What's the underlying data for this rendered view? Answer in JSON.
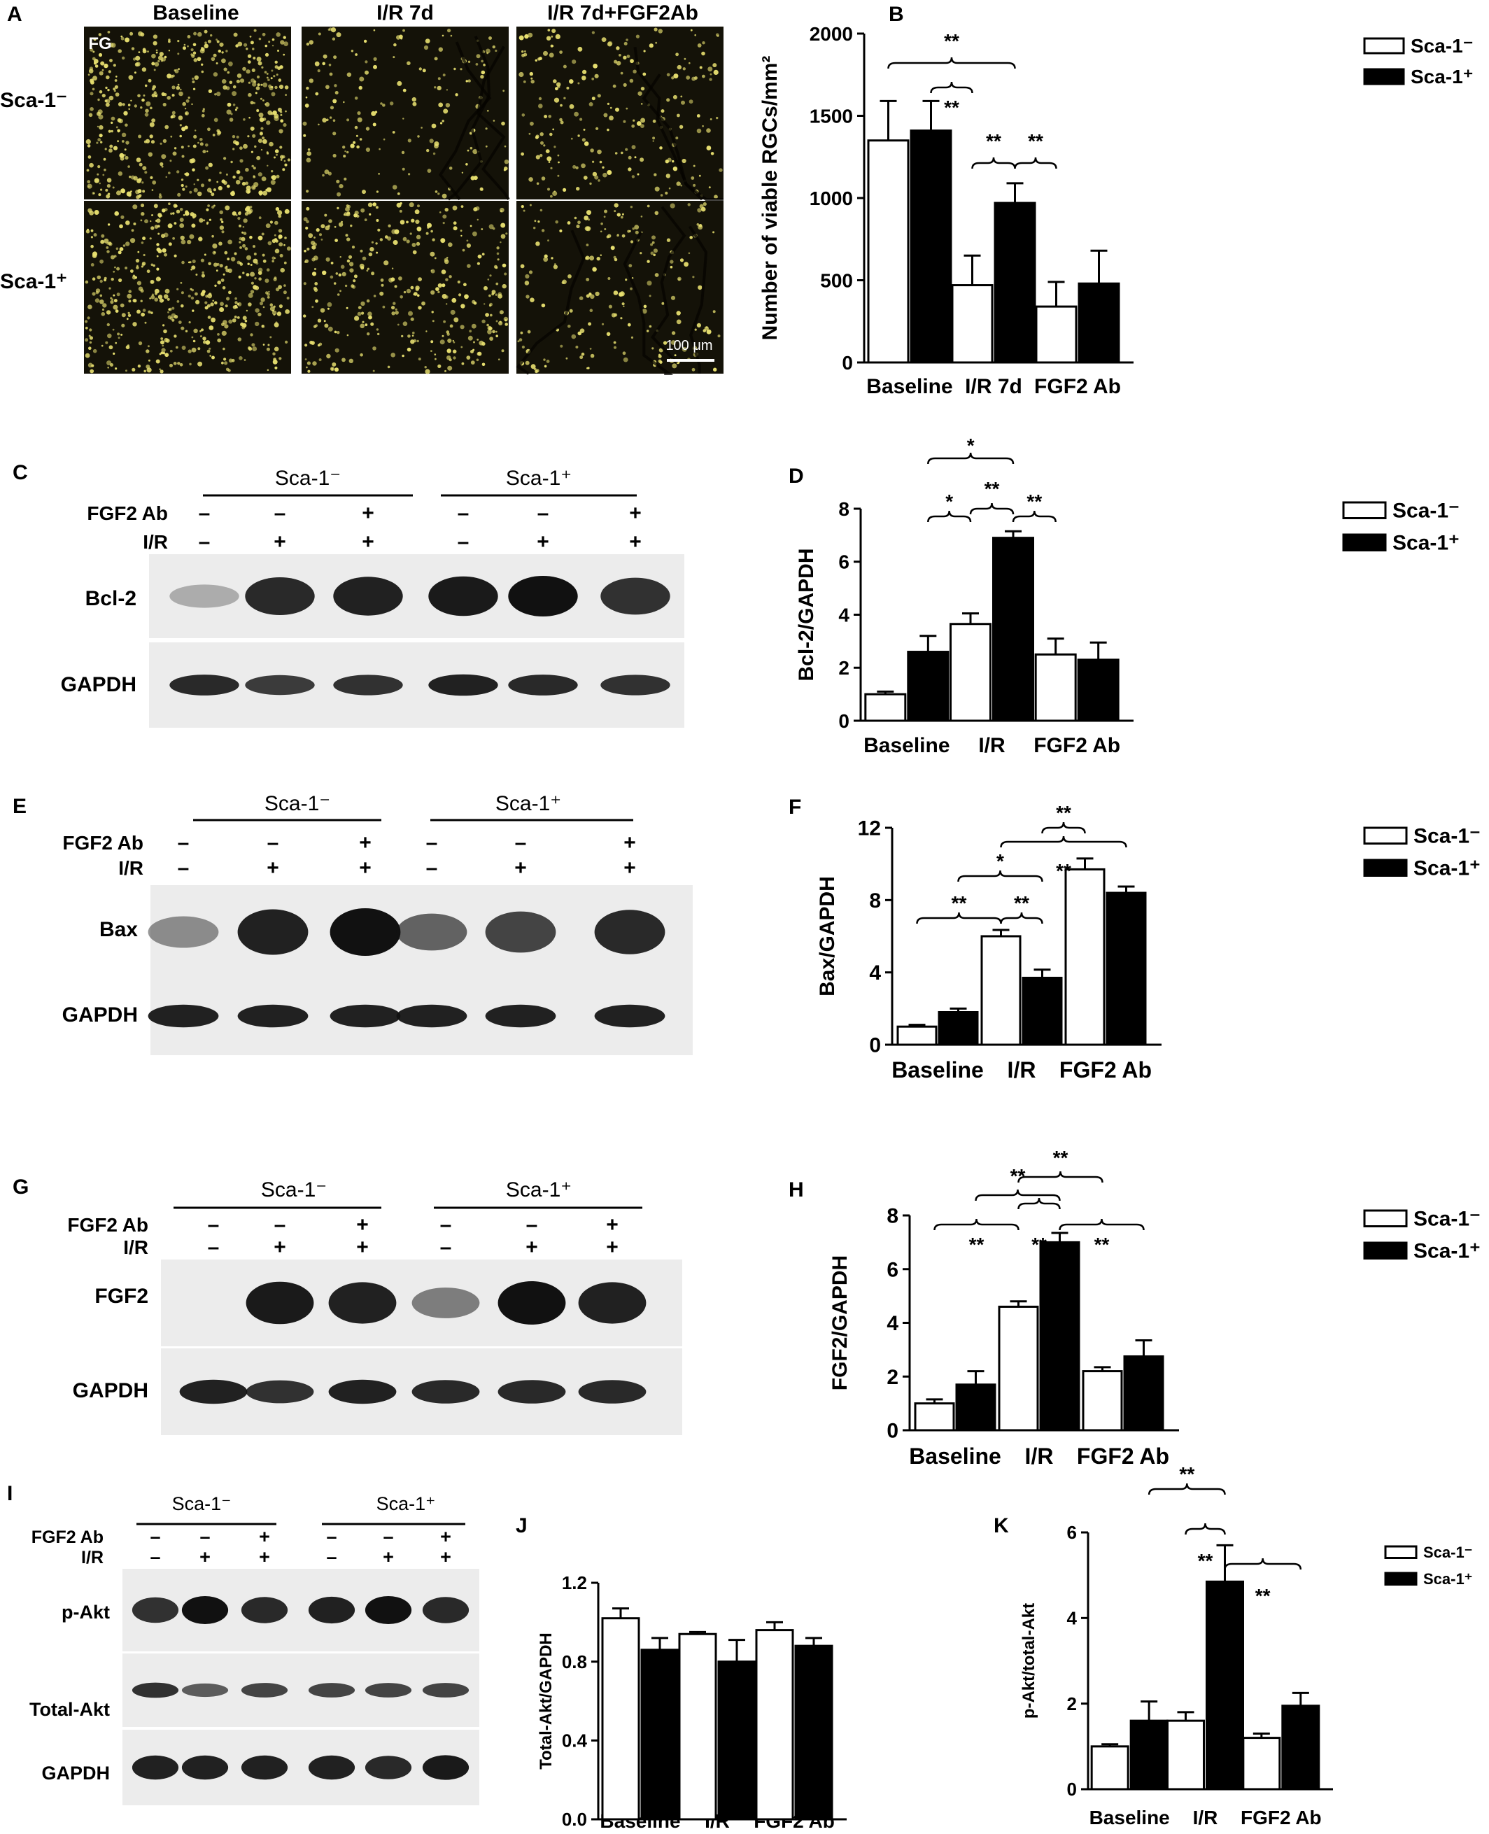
{
  "colors": {
    "micro_bg": "#141208",
    "dot": "#e8e070",
    "bar_neg": "#ffffff",
    "bar_pos": "#000000",
    "blot_bg": "#ececec",
    "band": "#111111"
  },
  "panelA": {
    "letter": "A",
    "col_headers": [
      "Baseline",
      "I/R 7d",
      "I/R 7d+FGF2Ab"
    ],
    "row_headers": [
      "Sca-1⁻",
      "Sca-1⁺"
    ],
    "stain_label": "FG",
    "scale_bar_label": "100 μm",
    "tiles": [
      {
        "name": "micrograph-sca1neg-baseline",
        "density": 1.0,
        "vessels": 0
      },
      {
        "name": "micrograph-sca1neg-ir7d",
        "density": 0.35,
        "vessels": 3
      },
      {
        "name": "micrograph-sca1neg-ir7d-fgf2ab",
        "density": 0.45,
        "vessels": 2
      },
      {
        "name": "micrograph-sca1pos-baseline",
        "density": 1.0,
        "vessels": 0
      },
      {
        "name": "micrograph-sca1pos-ir7d",
        "density": 0.7,
        "vessels": 0
      },
      {
        "name": "micrograph-sca1pos-ir7d-fgf2ab",
        "density": 0.4,
        "vessels": 4
      }
    ]
  },
  "blots": [
    {
      "id": "C",
      "letter": "C",
      "groups": [
        "Sca-1⁻",
        "Sca-1⁺"
      ],
      "treatments": [
        {
          "label": "FGF2 Ab",
          "signs": [
            "–",
            "–",
            "+",
            "–",
            "–",
            "+"
          ]
        },
        {
          "label": "I/R",
          "signs": [
            "–",
            "+",
            "+",
            "–",
            "+",
            "+"
          ]
        }
      ],
      "rows": [
        {
          "label": "Bcl-2",
          "intensities": [
            0.05,
            0.85,
            0.9,
            0.95,
            1.0,
            0.8
          ]
        },
        {
          "label": "GAPDH",
          "intensities": [
            0.85,
            0.75,
            0.8,
            0.9,
            0.85,
            0.8
          ]
        }
      ]
    },
    {
      "id": "E",
      "letter": "E",
      "groups": [
        "Sca-1⁻",
        "Sca-1⁺"
      ],
      "treatments": [
        {
          "label": "FGF2 Ab",
          "signs": [
            "–",
            "–",
            "+",
            "–",
            "–",
            "+"
          ]
        },
        {
          "label": "I/R",
          "signs": [
            "–",
            "+",
            "+",
            "–",
            "+",
            "+"
          ]
        }
      ],
      "rows": [
        {
          "label": "Bax",
          "intensities": [
            0.25,
            0.9,
            1.0,
            0.5,
            0.7,
            0.85
          ]
        },
        {
          "label": "GAPDH",
          "intensities": [
            0.9,
            0.9,
            0.9,
            0.9,
            0.9,
            0.9
          ]
        }
      ]
    },
    {
      "id": "G",
      "letter": "G",
      "groups": [
        "Sca-1⁻",
        "Sca-1⁺"
      ],
      "treatments": [
        {
          "label": "FGF2 Ab",
          "signs": [
            "–",
            "–",
            "+",
            "–",
            "–",
            "+"
          ]
        },
        {
          "label": "I/R",
          "signs": [
            "–",
            "+",
            "+",
            "–",
            "+",
            "+"
          ]
        }
      ],
      "rows": [
        {
          "label": "FGF2",
          "intensities": [
            0.0,
            0.95,
            0.9,
            0.35,
            1.0,
            0.9
          ]
        },
        {
          "label": "GAPDH",
          "intensities": [
            0.9,
            0.8,
            0.9,
            0.85,
            0.85,
            0.85
          ]
        }
      ]
    },
    {
      "id": "I",
      "letter": "I",
      "groups": [
        "Sca-1⁻",
        "Sca-1⁺"
      ],
      "treatments": [
        {
          "label": "FGF2 Ab",
          "signs": [
            "–",
            "–",
            "+",
            "–",
            "–",
            "+"
          ]
        },
        {
          "label": "I/R",
          "signs": [
            "–",
            "+",
            "+",
            "–",
            "+",
            "+"
          ]
        }
      ],
      "rows": [
        {
          "label": "p-Akt",
          "intensities": [
            0.8,
            1.0,
            0.85,
            0.9,
            1.0,
            0.85
          ]
        },
        {
          "label": "Total-Akt",
          "intensities": [
            0.8,
            0.55,
            0.7,
            0.7,
            0.7,
            0.7
          ]
        },
        {
          "label": "GAPDH",
          "intensities": [
            0.9,
            0.9,
            0.9,
            0.9,
            0.85,
            0.95
          ]
        }
      ]
    }
  ],
  "chart_data": [
    {
      "id": "B",
      "letter": "B",
      "type": "bar",
      "categories": [
        "Baseline",
        "I/R 7d",
        "FGF2 Ab"
      ],
      "ylabel": "Number of viable RGCs/mm²",
      "ylim": [
        0,
        2000
      ],
      "yticks": [
        0,
        500,
        1000,
        1500,
        2000
      ],
      "series": [
        {
          "name": "Sca-1⁻",
          "values": [
            1350,
            470,
            340
          ],
          "errors": [
            240,
            180,
            150
          ]
        },
        {
          "name": "Sca-1⁺",
          "values": [
            1410,
            970,
            480
          ],
          "errors": [
            180,
            120,
            200
          ]
        }
      ],
      "legend": {
        "position": "top-right"
      },
      "sig": [
        {
          "from": [
            0,
            0
          ],
          "to": [
            1,
            1
          ],
          "text": "**"
        },
        {
          "from": [
            0,
            1
          ],
          "to": [
            1,
            0
          ],
          "text": "**"
        },
        {
          "from": [
            1,
            0
          ],
          "to": [
            1,
            1
          ],
          "text": "**"
        },
        {
          "from": [
            1,
            1
          ],
          "to": [
            2,
            0
          ],
          "text": "**"
        }
      ]
    },
    {
      "id": "D",
      "letter": "D",
      "type": "bar",
      "categories": [
        "Baseline",
        "I/R",
        "FGF2 Ab"
      ],
      "ylabel": "Bcl-2/GAPDH",
      "ylim": [
        0,
        8
      ],
      "yticks": [
        0,
        2,
        4,
        6,
        8
      ],
      "series": [
        {
          "name": "Sca-1⁻",
          "values": [
            1.0,
            3.65,
            2.5
          ],
          "errors": [
            0.1,
            0.4,
            0.6
          ]
        },
        {
          "name": "Sca-1⁺",
          "values": [
            2.6,
            6.9,
            2.3
          ],
          "errors": [
            0.6,
            0.25,
            0.65
          ]
        }
      ],
      "legend": {
        "position": "top-right"
      },
      "sig": [
        {
          "from": [
            0,
            1
          ],
          "to": [
            1,
            1
          ],
          "text": "*"
        },
        {
          "from": [
            0,
            1
          ],
          "to": [
            1,
            0
          ],
          "text": "*"
        },
        {
          "from": [
            1,
            0
          ],
          "to": [
            1,
            1
          ],
          "text": "**"
        },
        {
          "from": [
            1,
            1
          ],
          "to": [
            2,
            0
          ],
          "text": "**"
        }
      ]
    },
    {
      "id": "F",
      "letter": "F",
      "type": "bar",
      "categories": [
        "Baseline",
        "I/R",
        "FGF2 Ab"
      ],
      "ylabel": "Bax/GAPDH",
      "ylim": [
        0,
        12
      ],
      "yticks": [
        0,
        4,
        8,
        12
      ],
      "series": [
        {
          "name": "Sca-1⁻",
          "values": [
            1.0,
            6.0,
            9.7
          ],
          "errors": [
            0.1,
            0.35,
            0.6
          ]
        },
        {
          "name": "Sca-1⁺",
          "values": [
            1.8,
            3.7,
            8.4
          ],
          "errors": [
            0.2,
            0.45,
            0.35
          ]
        }
      ],
      "legend": {
        "position": "top-right"
      },
      "sig": [
        {
          "from": [
            0,
            0
          ],
          "to": [
            1,
            0
          ],
          "text": "**"
        },
        {
          "from": [
            0,
            1
          ],
          "to": [
            1,
            1
          ],
          "text": "*"
        },
        {
          "from": [
            1,
            0
          ],
          "to": [
            1,
            1
          ],
          "text": "**"
        },
        {
          "from": [
            1,
            1
          ],
          "to": [
            2,
            0
          ],
          "text": "**"
        },
        {
          "from": [
            1,
            0
          ],
          "to": [
            2,
            1
          ],
          "text": "**"
        }
      ]
    },
    {
      "id": "H",
      "letter": "H",
      "type": "bar",
      "categories": [
        "Baseline",
        "I/R",
        "FGF2 Ab"
      ],
      "ylabel": "FGF2/GAPDH",
      "ylim": [
        0,
        8
      ],
      "yticks": [
        0,
        2,
        4,
        6,
        8
      ],
      "series": [
        {
          "name": "Sca-1⁻",
          "values": [
            1.0,
            4.6,
            2.2
          ],
          "errors": [
            0.15,
            0.2,
            0.15
          ]
        },
        {
          "name": "Sca-1⁺",
          "values": [
            1.7,
            7.0,
            2.75
          ],
          "errors": [
            0.5,
            0.35,
            0.6
          ]
        }
      ],
      "legend": {
        "position": "top-right"
      },
      "sig": [
        {
          "from": [
            0,
            1
          ],
          "to": [
            1,
            1
          ],
          "text": "**"
        },
        {
          "from": [
            1,
            0
          ],
          "to": [
            2,
            0
          ],
          "text": "**"
        },
        {
          "from": [
            0,
            0
          ],
          "to": [
            1,
            0
          ],
          "text": "**"
        },
        {
          "from": [
            1,
            0
          ],
          "to": [
            1,
            1
          ],
          "text": "**"
        },
        {
          "from": [
            1,
            1
          ],
          "to": [
            2,
            1
          ],
          "text": "**"
        }
      ]
    },
    {
      "id": "J",
      "letter": "J",
      "type": "bar",
      "categories": [
        "Baseline",
        "I/R",
        "FGF2 Ab"
      ],
      "ylabel": "Total-Akt/GAPDH",
      "ylim": [
        0,
        1.2
      ],
      "yticks": [
        0.0,
        0.4,
        0.8,
        1.2
      ],
      "series": [
        {
          "name": "Sca-1⁻",
          "values": [
            1.02,
            0.94,
            0.96
          ],
          "errors": [
            0.05,
            0.01,
            0.04
          ]
        },
        {
          "name": "Sca-1⁺",
          "values": [
            0.86,
            0.8,
            0.88
          ],
          "errors": [
            0.06,
            0.11,
            0.04
          ]
        }
      ],
      "sig": []
    },
    {
      "id": "K",
      "letter": "K",
      "type": "bar",
      "categories": [
        "Baseline",
        "I/R",
        "FGF2 Ab"
      ],
      "ylabel": "p-Akt/total-Akt",
      "ylim": [
        0,
        6
      ],
      "yticks": [
        0,
        2,
        4,
        6
      ],
      "series": [
        {
          "name": "Sca-1⁻",
          "values": [
            1.0,
            1.6,
            1.2
          ],
          "errors": [
            0.05,
            0.2,
            0.1
          ]
        },
        {
          "name": "Sca-1⁺",
          "values": [
            1.6,
            4.85,
            1.95
          ],
          "errors": [
            0.45,
            0.85,
            0.3
          ]
        }
      ],
      "legend": {
        "position": "top-right"
      },
      "sig": [
        {
          "from": [
            0,
            1
          ],
          "to": [
            1,
            1
          ],
          "text": "**"
        },
        {
          "from": [
            1,
            0
          ],
          "to": [
            1,
            1
          ],
          "text": "**"
        },
        {
          "from": [
            1,
            1
          ],
          "to": [
            2,
            1
          ],
          "text": "**"
        }
      ]
    }
  ]
}
